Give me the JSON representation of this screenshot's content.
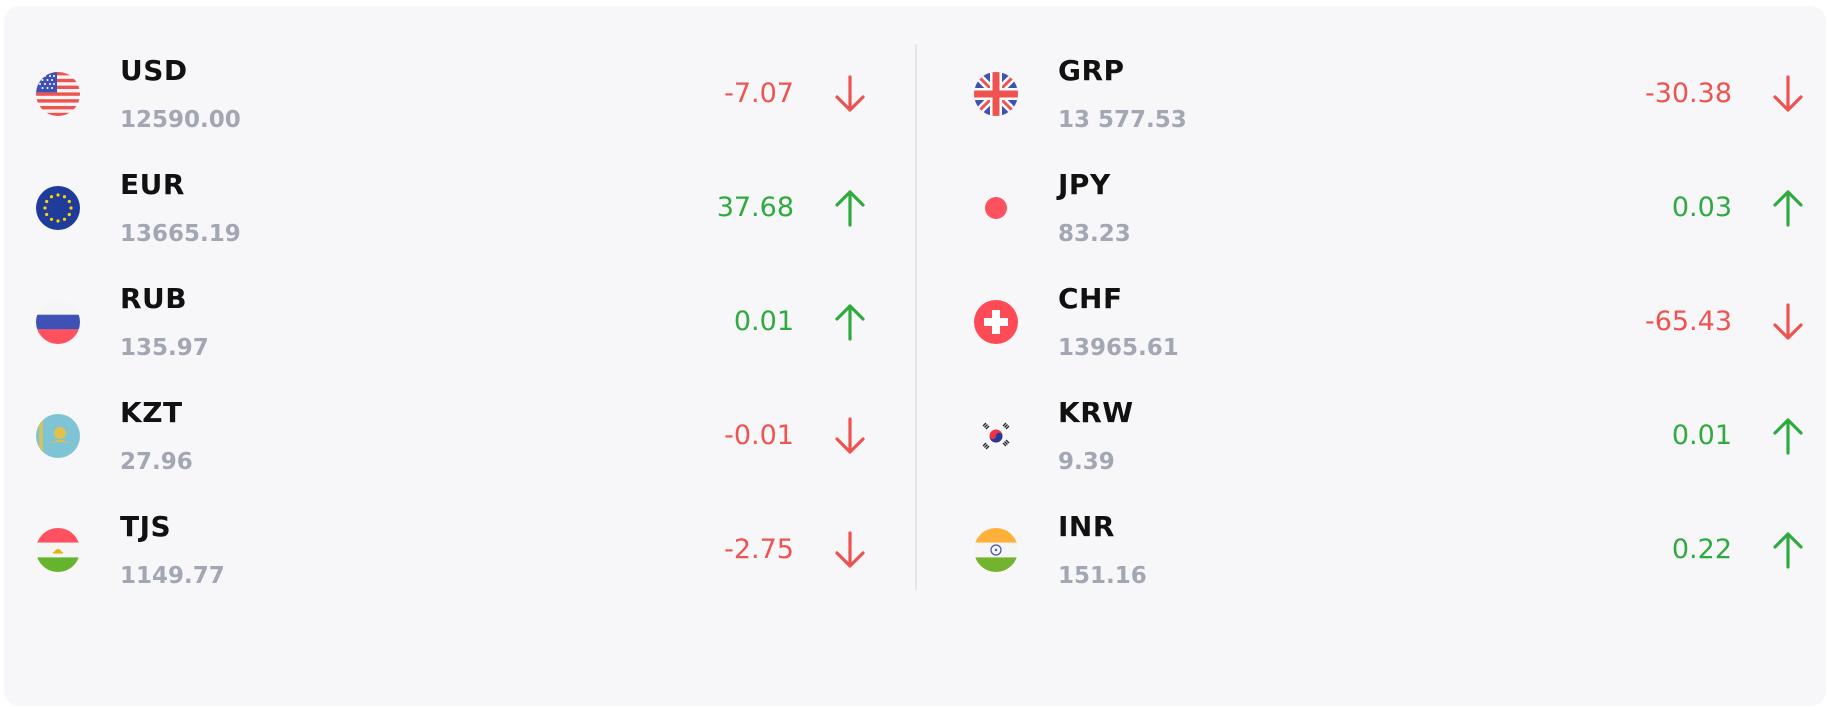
{
  "colors": {
    "up": "#2faa3f",
    "down": "#ef5350",
    "code": "#111111",
    "rate": "#a3a7b3"
  },
  "left": [
    {
      "code": "USD",
      "rate": "12590.00",
      "change": "-7.07",
      "direction": "down",
      "flag_icon": "us-flag-icon"
    },
    {
      "code": "EUR",
      "rate": "13665.19",
      "change": "37.68",
      "direction": "up",
      "flag_icon": "eu-flag-icon"
    },
    {
      "code": "RUB",
      "rate": "135.97",
      "change": "0.01",
      "direction": "up",
      "flag_icon": "ru-flag-icon"
    },
    {
      "code": "KZT",
      "rate": "27.96",
      "change": "-0.01",
      "direction": "down",
      "flag_icon": "kz-flag-icon"
    },
    {
      "code": "TJS",
      "rate": "1149.77",
      "change": "-2.75",
      "direction": "down",
      "flag_icon": "tj-flag-icon"
    }
  ],
  "right": [
    {
      "code": "GRP",
      "rate": "13 577.53",
      "change": "-30.38",
      "direction": "down",
      "flag_icon": "gb-flag-icon"
    },
    {
      "code": "JPY",
      "rate": "83.23",
      "change": "0.03",
      "direction": "up",
      "flag_icon": "jp-flag-icon"
    },
    {
      "code": "CHF",
      "rate": "13965.61",
      "change": "-65.43",
      "direction": "down",
      "flag_icon": "ch-flag-icon"
    },
    {
      "code": "KRW",
      "rate": "9.39",
      "change": "0.01",
      "direction": "up",
      "flag_icon": "kr-flag-icon"
    },
    {
      "code": "INR",
      "rate": "151.16",
      "change": "0.22",
      "direction": "up",
      "flag_icon": "in-flag-icon"
    }
  ]
}
